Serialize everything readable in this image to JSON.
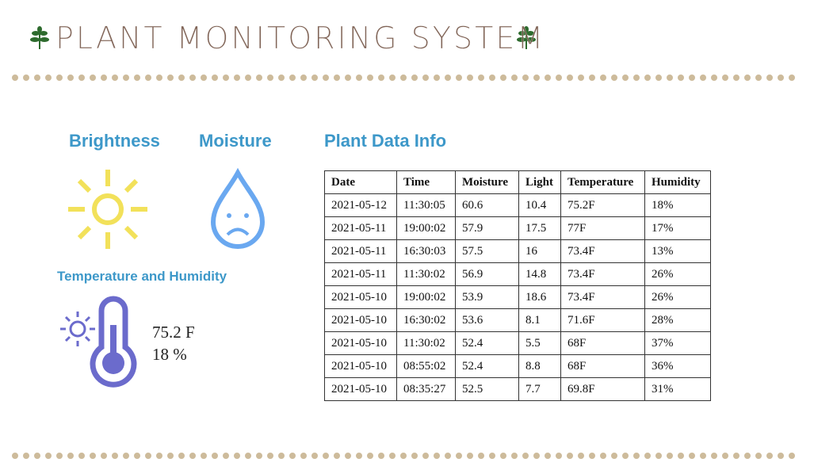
{
  "header": {
    "title": "PLANT MONITORING SYSTEM"
  },
  "widgets": {
    "brightness": "Brightness",
    "moisture": "Moisture",
    "temp_humidity": "Temperature and Humidity",
    "temperature_reading": "75.2 F",
    "humidity_reading": "18 %"
  },
  "table": {
    "title": "Plant Data Info",
    "columns": [
      "Date",
      "Time",
      "Moisture",
      "Light",
      "Temperature",
      "Humidity"
    ],
    "rows": [
      [
        "2021-05-12",
        "11:30:05",
        "60.6",
        "10.4",
        "75.2F",
        "18%"
      ],
      [
        "2021-05-11",
        "19:00:02",
        "57.9",
        "17.5",
        "77F",
        "17%"
      ],
      [
        "2021-05-11",
        "16:30:03",
        "57.5",
        "16",
        "73.4F",
        "13%"
      ],
      [
        "2021-05-11",
        "11:30:02",
        "56.9",
        "14.8",
        "73.4F",
        "26%"
      ],
      [
        "2021-05-10",
        "19:00:02",
        "53.9",
        "18.6",
        "73.4F",
        "26%"
      ],
      [
        "2021-05-10",
        "16:30:02",
        "53.6",
        "8.1",
        "71.6F",
        "28%"
      ],
      [
        "2021-05-10",
        "11:30:02",
        "52.4",
        "5.5",
        "68F",
        "37%"
      ],
      [
        "2021-05-10",
        "08:55:02",
        "52.4",
        "8.8",
        "68F",
        "36%"
      ],
      [
        "2021-05-10",
        "08:35:27",
        "52.5",
        "7.7",
        "69.8F",
        "31%"
      ]
    ]
  }
}
